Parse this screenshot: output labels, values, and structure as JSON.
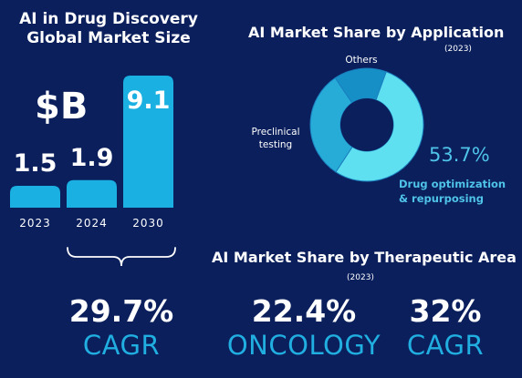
{
  "chart_data": [
    {
      "type": "bar",
      "title": "AI in Drug Discovery\nGlobal Market Size",
      "unit": "$B",
      "categories": [
        "2023",
        "2024",
        "2030"
      ],
      "values": [
        1.5,
        1.9,
        9.1
      ],
      "value_labels": [
        "1.5",
        "1.9",
        "9.1"
      ],
      "bar_color": "#1ab0e2",
      "bracket_label": "29.7%",
      "bracket_sublabel": "CAGR"
    },
    {
      "type": "pie",
      "title": "AI Market Share by Application",
      "subtitle": "(2023)",
      "slices": [
        {
          "label": "Drug optimization & repurposing",
          "value": 53.7,
          "value_label": "53.7%",
          "color": "#5ee0f0"
        },
        {
          "label": "Preclinical testing",
          "value": 31.3,
          "color": "#27acd8"
        },
        {
          "label": "Others",
          "value": 15.0,
          "color": "#168fc7"
        }
      ],
      "labels": {
        "others": "Others",
        "preclinical": [
          "Preclinical",
          "testing"
        ],
        "drug": [
          "Drug optimization",
          "& repurposing"
        ],
        "pct": "53.7%"
      }
    }
  ],
  "therapeutic": {
    "title": "AI Market Share by Therapeutic Area",
    "subtitle": "(2023)",
    "stats": [
      {
        "value": "22.4%",
        "label": "ONCOLOGY"
      },
      {
        "value": "32%",
        "label": "CAGR"
      }
    ]
  },
  "colors": {
    "background": "#0a1f5c",
    "accent": "#21aee0",
    "light_accent": "#4fc3e8"
  }
}
